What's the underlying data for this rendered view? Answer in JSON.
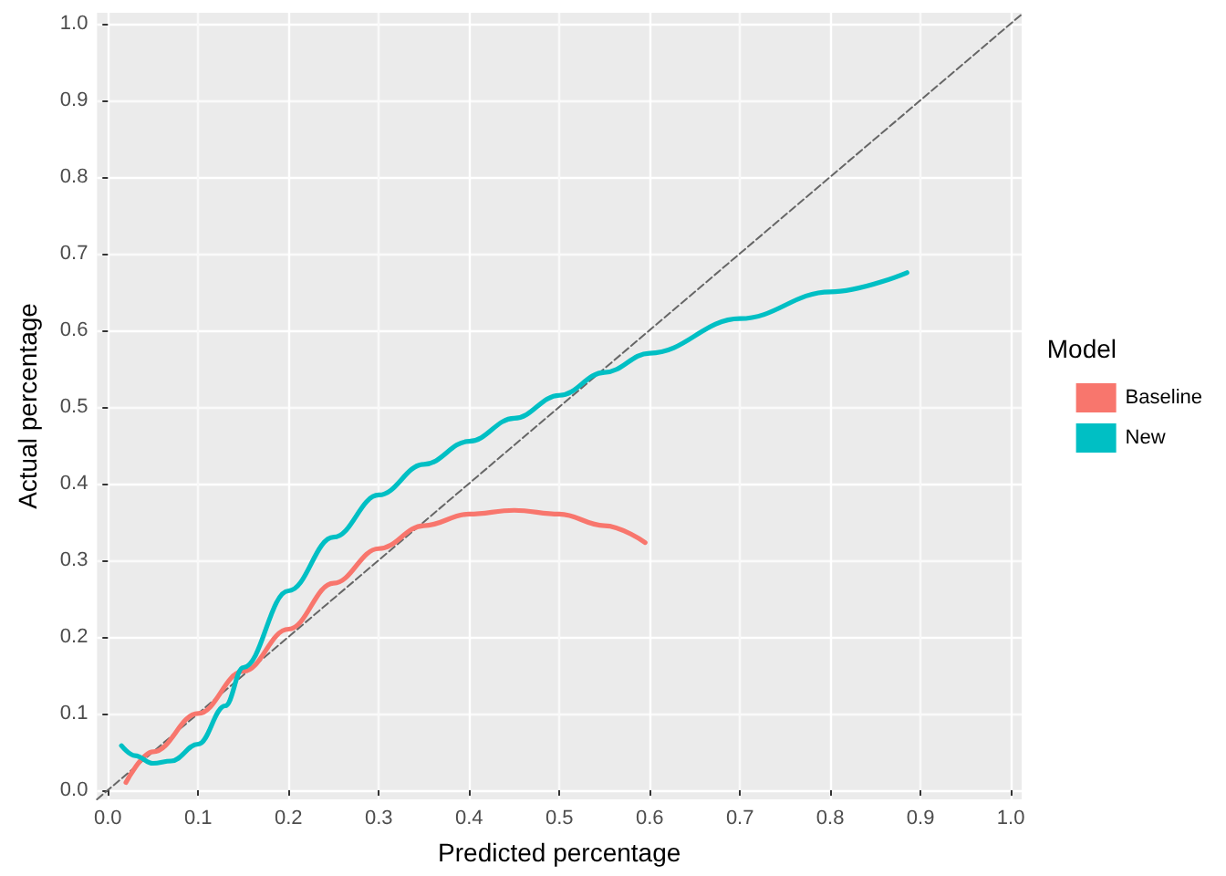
{
  "chart_data": {
    "type": "line",
    "xlabel": "Predicted percentage",
    "ylabel": "Actual percentage",
    "legend_title": "Model",
    "legend": "right",
    "grid": true,
    "marker": "none",
    "xlim": [
      -0.012,
      1.012
    ],
    "ylim": [
      -0.012,
      1.014
    ],
    "xticks": [
      {
        "value": 0,
        "label": "0.0"
      },
      {
        "value": 0.1,
        "label": "0.1"
      },
      {
        "value": 0.2,
        "label": "0.2"
      },
      {
        "value": 0.3,
        "label": "0.3"
      },
      {
        "value": 0.4,
        "label": "0.4"
      },
      {
        "value": 0.5,
        "label": "0.5"
      },
      {
        "value": 0.6,
        "label": "0.6"
      },
      {
        "value": 0.7,
        "label": "0.7"
      },
      {
        "value": 0.8,
        "label": "0.8"
      },
      {
        "value": 0.9,
        "label": "0.9"
      },
      {
        "value": 1,
        "label": "1.0"
      }
    ],
    "yticks": [
      {
        "value": 0,
        "label": "0.0"
      },
      {
        "value": 0.1,
        "label": "0.1"
      },
      {
        "value": 0.2,
        "label": "0.2"
      },
      {
        "value": 0.3,
        "label": "0.3"
      },
      {
        "value": 0.4,
        "label": "0.4"
      },
      {
        "value": 0.5,
        "label": "0.5"
      },
      {
        "value": 0.6,
        "label": "0.6"
      },
      {
        "value": 0.7,
        "label": "0.7"
      },
      {
        "value": 0.8,
        "label": "0.8"
      },
      {
        "value": 0.9,
        "label": "0.9"
      },
      {
        "value": 1,
        "label": "1.0"
      }
    ],
    "series": [
      {
        "color": "#666666",
        "line_style": "dashed",
        "x": [
          -0.012,
          1.012
        ],
        "values": [
          -0.012,
          1.012
        ]
      },
      {
        "name": "Baseline",
        "color": "#f8766d",
        "x": [
          0.02,
          0.05,
          0.1,
          0.15,
          0.2,
          0.25,
          0.3,
          0.35,
          0.4,
          0.45,
          0.5,
          0.55,
          0.595
        ],
        "values": [
          0.01,
          0.05,
          0.1,
          0.155,
          0.21,
          0.27,
          0.315,
          0.345,
          0.36,
          0.365,
          0.36,
          0.345,
          0.323
        ]
      },
      {
        "name": "New",
        "color": "#00bfc4",
        "x": [
          0.015,
          0.03,
          0.05,
          0.07,
          0.1,
          0.13,
          0.15,
          0.2,
          0.25,
          0.3,
          0.35,
          0.4,
          0.45,
          0.5,
          0.55,
          0.6,
          0.7,
          0.8,
          0.885
        ],
        "values": [
          0.058,
          0.045,
          0.035,
          0.038,
          0.06,
          0.11,
          0.16,
          0.26,
          0.33,
          0.385,
          0.425,
          0.455,
          0.485,
          0.515,
          0.545,
          0.57,
          0.615,
          0.65,
          0.675
        ]
      }
    ]
  }
}
